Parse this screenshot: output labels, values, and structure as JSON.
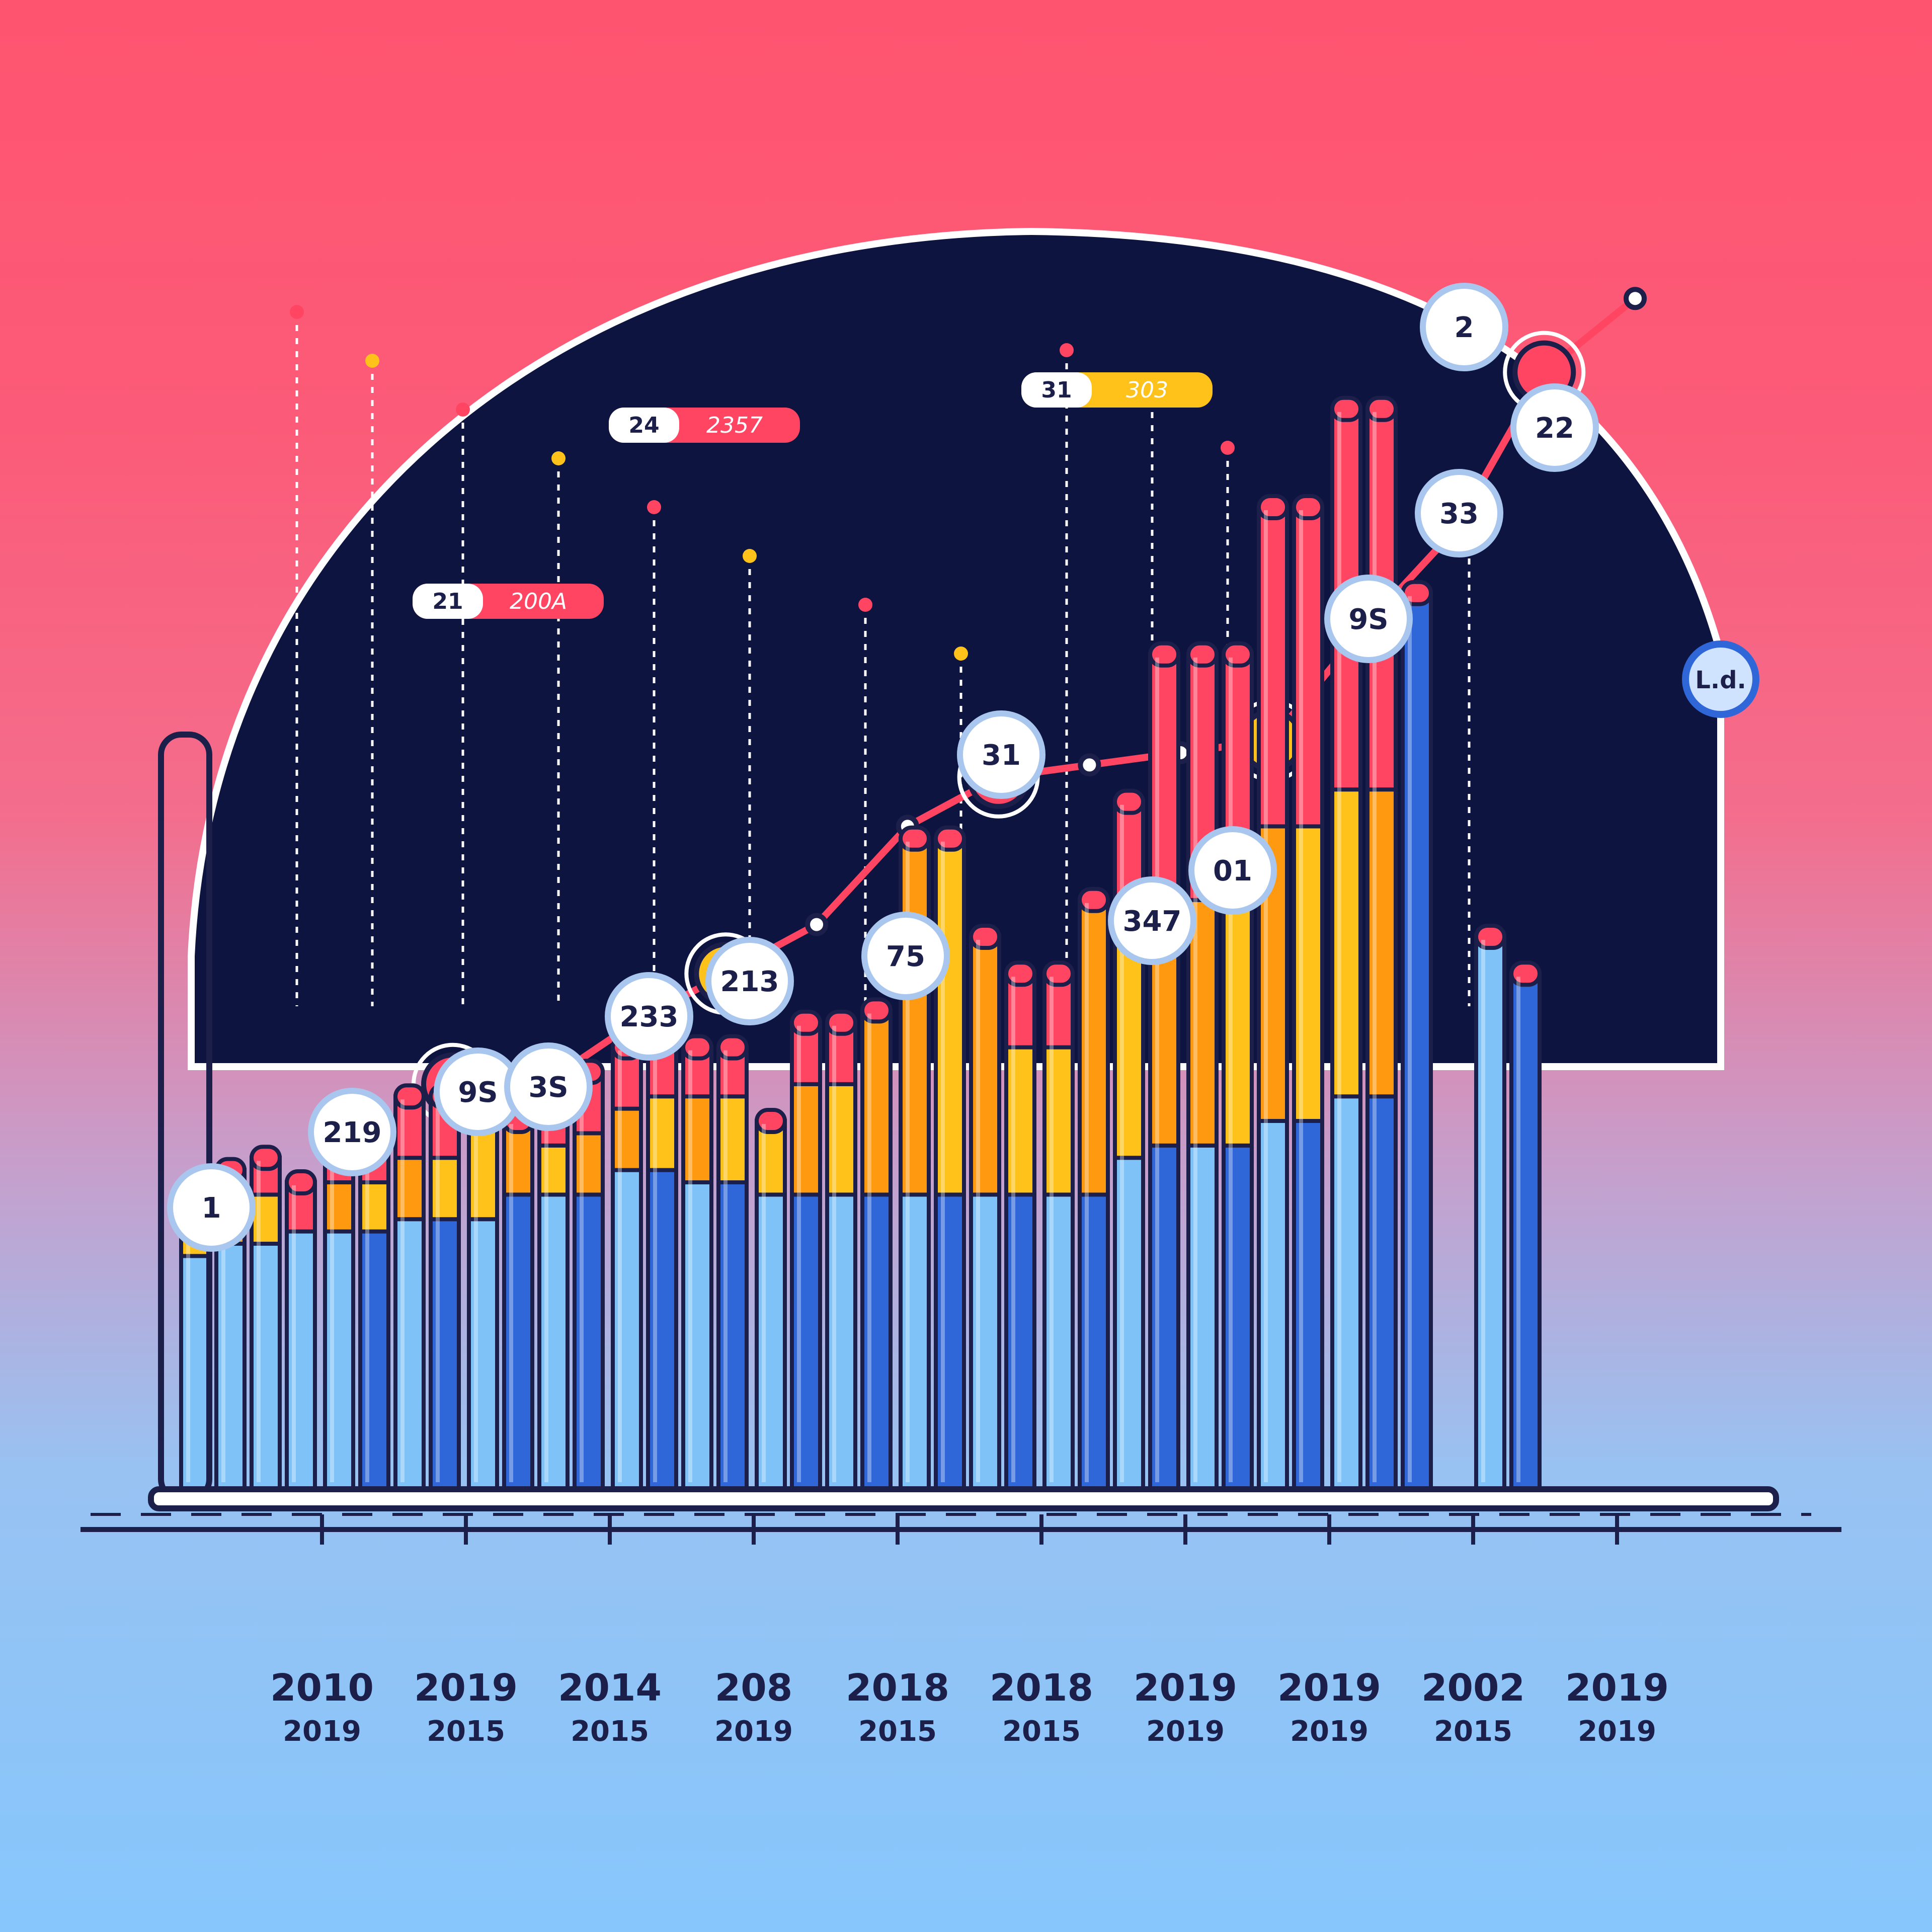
{
  "colors": {
    "panel": "#0e1440",
    "outline": "#1b1f4a",
    "light_blue": "#7ec2f7",
    "blue": "#2f66d8",
    "orange": "#ff9a10",
    "yellow": "#ffc21a",
    "red": "#ff4562",
    "white": "#ffffff"
  },
  "chart_data": {
    "type": "bar",
    "stacked": true,
    "grid": false,
    "legend": "none",
    "categories": [
      {
        "top": "2010",
        "bottom": "2019"
      },
      {
        "top": "2019",
        "bottom": "2015"
      },
      {
        "top": "2014",
        "bottom": "2015"
      },
      {
        "top": "208",
        "bottom": "2019"
      },
      {
        "top": "2018",
        "bottom": "2015"
      },
      {
        "top": "2018",
        "bottom": "2015"
      },
      {
        "top": "2019",
        "bottom": "2019"
      },
      {
        "top": "2019",
        "bottom": "2019"
      },
      {
        "top": "2002",
        "bottom": "2015"
      },
      {
        "top": "2019",
        "bottom": "2019"
      }
    ],
    "bars": [
      {
        "group": 0,
        "slot": 0,
        "tone": "light",
        "segments": [
          0.19,
          0.03,
          0.02
        ]
      },
      {
        "group": 0,
        "slot": 1,
        "tone": "light",
        "segments": [
          0.2,
          0.04,
          0.02
        ]
      },
      {
        "group": 0,
        "slot": 2,
        "tone": "light",
        "segments": [
          0.2,
          0.04,
          0.03
        ]
      },
      {
        "group": 0,
        "slot": 3,
        "tone": "light",
        "segments": [
          0.21,
          0.0,
          0.04
        ]
      },
      {
        "group": 1,
        "slot": 0,
        "tone": "light",
        "segments": [
          0.21,
          0.04,
          0.05
        ]
      },
      {
        "group": 1,
        "slot": 1,
        "tone": "dark",
        "segments": [
          0.21,
          0.04,
          0.05
        ]
      },
      {
        "group": 1,
        "slot": 2,
        "tone": "light",
        "segments": [
          0.22,
          0.05,
          0.05
        ]
      },
      {
        "group": 1,
        "slot": 3,
        "tone": "dark",
        "segments": [
          0.22,
          0.05,
          0.05
        ]
      },
      {
        "group": 2,
        "slot": 0,
        "tone": "light",
        "segments": [
          0.22,
          0.1,
          0.0
        ]
      },
      {
        "group": 2,
        "slot": 1,
        "tone": "dark",
        "segments": [
          0.24,
          0.06,
          0.0
        ]
      },
      {
        "group": 2,
        "slot": 2,
        "tone": "light",
        "segments": [
          0.24,
          0.04,
          0.05
        ]
      },
      {
        "group": 2,
        "slot": 3,
        "tone": "dark",
        "segments": [
          0.24,
          0.05,
          0.05
        ]
      },
      {
        "group": 3,
        "slot": 0,
        "tone": "light",
        "segments": [
          0.26,
          0.05,
          0.05
        ]
      },
      {
        "group": 3,
        "slot": 1,
        "tone": "dark",
        "segments": [
          0.26,
          0.06,
          0.05
        ]
      },
      {
        "group": 3,
        "slot": 2,
        "tone": "light",
        "segments": [
          0.25,
          0.07,
          0.04
        ]
      },
      {
        "group": 3,
        "slot": 3,
        "tone": "dark",
        "segments": [
          0.25,
          0.07,
          0.04
        ]
      },
      {
        "group": 4,
        "slot": 0,
        "tone": "light",
        "segments": [
          0.24,
          0.06,
          0.0
        ]
      },
      {
        "group": 4,
        "slot": 1,
        "tone": "dark",
        "segments": [
          0.24,
          0.09,
          0.05
        ]
      },
      {
        "group": 4,
        "slot": 2,
        "tone": "light",
        "segments": [
          0.24,
          0.09,
          0.05
        ]
      },
      {
        "group": 4,
        "slot": 3,
        "tone": "dark",
        "segments": [
          0.24,
          0.15,
          0.0
        ]
      },
      {
        "group": 5,
        "slot": 0,
        "tone": "light",
        "segments": [
          0.24,
          0.29,
          0.0
        ]
      },
      {
        "group": 5,
        "slot": 1,
        "tone": "dark",
        "segments": [
          0.24,
          0.29,
          0.0
        ]
      },
      {
        "group": 5,
        "slot": 2,
        "tone": "light",
        "segments": [
          0.24,
          0.21,
          0.0
        ]
      },
      {
        "group": 5,
        "slot": 3,
        "tone": "dark",
        "segments": [
          0.24,
          0.12,
          0.06
        ]
      },
      {
        "group": 6,
        "slot": 0,
        "tone": "light",
        "segments": [
          0.24,
          0.12,
          0.06
        ]
      },
      {
        "group": 6,
        "slot": 1,
        "tone": "dark",
        "segments": [
          0.24,
          0.24,
          0.0
        ]
      },
      {
        "group": 6,
        "slot": 2,
        "tone": "light",
        "segments": [
          0.27,
          0.21,
          0.08
        ]
      },
      {
        "group": 6,
        "slot": 3,
        "tone": "dark",
        "segments": [
          0.28,
          0.2,
          0.2
        ]
      },
      {
        "group": 7,
        "slot": 0,
        "tone": "light",
        "segments": [
          0.28,
          0.2,
          0.2
        ]
      },
      {
        "group": 7,
        "slot": 1,
        "tone": "dark",
        "segments": [
          0.28,
          0.2,
          0.2
        ]
      },
      {
        "group": 7,
        "slot": 2,
        "tone": "light",
        "segments": [
          0.3,
          0.24,
          0.26
        ]
      },
      {
        "group": 7,
        "slot": 3,
        "tone": "dark",
        "segments": [
          0.3,
          0.24,
          0.26
        ]
      },
      {
        "group": 8,
        "slot": 0,
        "tone": "light",
        "segments": [
          0.32,
          0.25,
          0.31
        ]
      },
      {
        "group": 8,
        "slot": 1,
        "tone": "dark",
        "segments": [
          0.32,
          0.25,
          0.31
        ]
      },
      {
        "group": 8,
        "slot": 2,
        "tone": "dark",
        "segments": [
          0.73,
          0.0,
          0.0
        ]
      },
      {
        "group": 9,
        "slot": 0,
        "tone": "light",
        "segments": [
          0.45,
          0.0,
          0.0
        ]
      },
      {
        "group": 9,
        "slot": 1,
        "tone": "dark",
        "segments": [
          0.42,
          0.0,
          0.0
        ]
      }
    ],
    "line": [
      0.33,
      0.33,
      0.38,
      0.42,
      0.46,
      0.54,
      0.58,
      0.59,
      0.6,
      0.61,
      0.7,
      0.78,
      0.91,
      0.97
    ],
    "value_badges": [
      "1",
      "219",
      "9S",
      "3S",
      "233",
      "213",
      "75",
      "31",
      "347",
      "01",
      "9S",
      "33",
      "22",
      "2"
    ],
    "flags": [
      {
        "left": "21",
        "right": "200A",
        "tone": "red"
      },
      {
        "left": "24",
        "right": "2357",
        "tone": "red"
      },
      {
        "left": "31",
        "right": "303",
        "tone": "yellow"
      }
    ],
    "corner_label": "L.d."
  }
}
